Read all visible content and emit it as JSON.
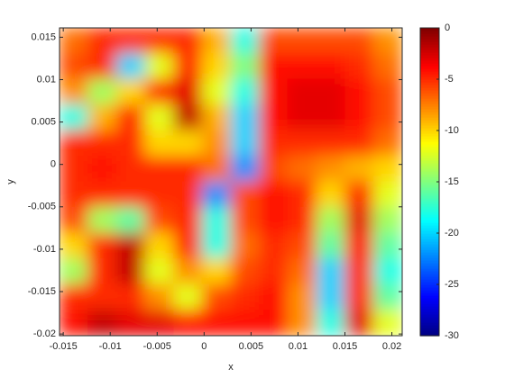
{
  "chart_data": {
    "type": "heatmap",
    "x_label": "x",
    "y_label": "y",
    "xlim": [
      -0.0154,
      0.0211
    ],
    "ylim": [
      -0.0202,
      0.0161
    ],
    "xticks": [
      -0.015,
      -0.01,
      -0.005,
      0,
      0.005,
      0.01,
      0.015,
      0.02
    ],
    "yticks": [
      0.015,
      0.01,
      0.005,
      0,
      -0.005,
      -0.01,
      -0.015,
      -0.02
    ],
    "colormap": "jet",
    "clim": [
      -30,
      0
    ],
    "cticks": [
      0,
      -5,
      -10,
      -15,
      -20,
      -25,
      -30
    ],
    "z": [
      [
        -7,
        -5,
        -5,
        -5,
        -5,
        -9,
        -18,
        -6,
        -6,
        -6,
        -6,
        -8
      ],
      [
        -6,
        -5,
        -20,
        -12,
        -5,
        -10,
        -15,
        -4,
        -4,
        -4,
        -5,
        -7
      ],
      [
        -8,
        -14,
        -10,
        -5,
        -3,
        -12,
        -18,
        -4,
        -3,
        -3,
        -4,
        -6
      ],
      [
        -18,
        -9,
        -5,
        -12,
        -2,
        -9,
        -20,
        -4,
        -3,
        -3,
        -4,
        -6
      ],
      [
        -5,
        -5,
        -5,
        -10,
        -10,
        -8,
        -20,
        -5,
        -5,
        -5,
        -5,
        -7
      ],
      [
        -5,
        -4,
        -5,
        -5,
        -5,
        -7,
        -22,
        -6,
        -7,
        -8,
        -9,
        -10
      ],
      [
        -5,
        -5,
        -5,
        -5,
        -5,
        -22,
        -6,
        -4,
        -5,
        -10,
        -5,
        -12
      ],
      [
        -6,
        -14,
        -16,
        -6,
        -5,
        -18,
        -6,
        -4,
        -5,
        -14,
        -3,
        -14
      ],
      [
        -10,
        -5,
        -2,
        -10,
        -5,
        -18,
        -7,
        -5,
        -6,
        -16,
        -4,
        -16
      ],
      [
        -14,
        -5,
        -2,
        -12,
        -8,
        -10,
        -6,
        -5,
        -7,
        -20,
        -5,
        -18
      ],
      [
        -5,
        -5,
        -5,
        -8,
        -12,
        -6,
        -5,
        -4,
        -8,
        -20,
        -5,
        -16
      ],
      [
        -4,
        -2,
        -3,
        -3,
        -4,
        -4,
        -4,
        -4,
        -8,
        -18,
        -3,
        -12
      ]
    ]
  }
}
